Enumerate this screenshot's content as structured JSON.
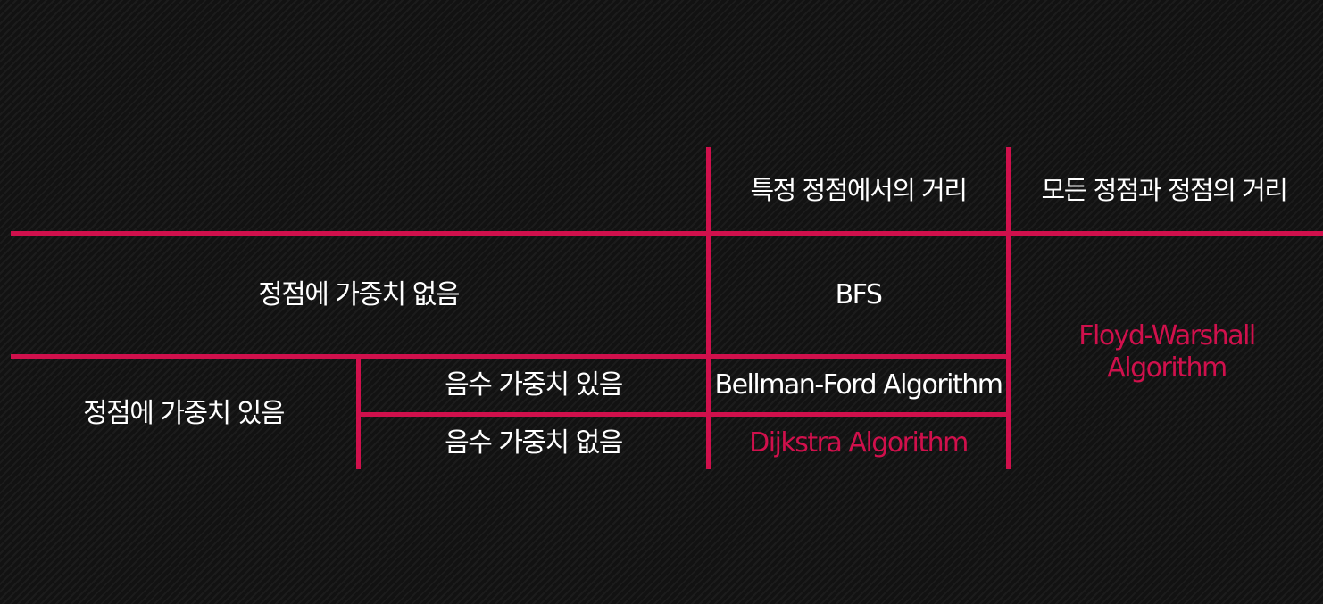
{
  "colors": {
    "background": "#141414",
    "line": "#d0104c",
    "text": "#ffffff",
    "accent_text": "#d0104c"
  },
  "table": {
    "headers": {
      "single_source": "특정 정점에서의 거리",
      "all_pairs": "모든 정점과 정점의 거리"
    },
    "rows": {
      "unweighted": "정점에 가중치 없음",
      "weighted": "정점에 가중치 있음",
      "negative_weights": "음수 가중치 있음",
      "no_negative_weights": "음수 가중치 없음"
    },
    "algorithms": {
      "bfs": "BFS",
      "bellman_ford": "Bellman-Ford Algorithm",
      "dijkstra": "Dijkstra Algorithm",
      "floyd_warshall_line1": "Floyd-Warshall",
      "floyd_warshall_line2": "Algorithm"
    }
  }
}
